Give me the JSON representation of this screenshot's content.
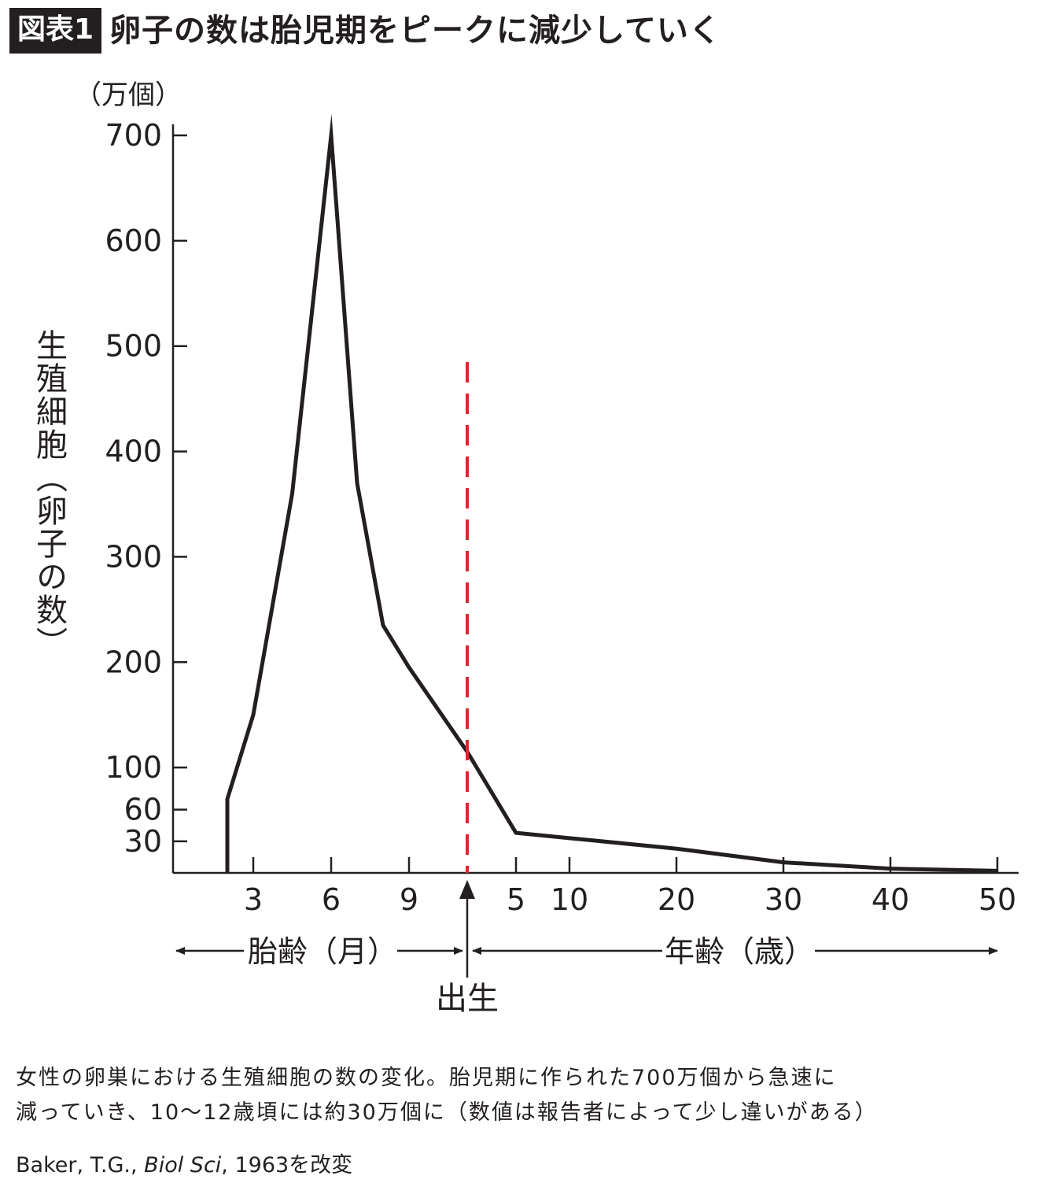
{
  "header": {
    "badge": "図表1",
    "title": "卵子の数は胎児期をピークに減少していく"
  },
  "chart_data": {
    "type": "line",
    "ylabel": "生殖細胞（卵子の数）",
    "yunit": "（万個）",
    "y_ticks": [
      30,
      60,
      100,
      200,
      300,
      400,
      500,
      600,
      700
    ],
    "ylim": [
      0,
      700
    ],
    "x_segments": [
      {
        "label": "胎齢（月）",
        "ticks": [
          "3",
          "6",
          "9"
        ]
      },
      {
        "label": "年齢（歳）",
        "ticks": [
          "5",
          "10",
          "20",
          "30",
          "40",
          "50"
        ]
      }
    ],
    "birth_label": "出生",
    "birth_line_color": "#d7282f",
    "line_color": "#231f20",
    "series": [
      {
        "points": [
          {
            "period": "fetal",
            "x": 2,
            "y": 0
          },
          {
            "period": "fetal",
            "x": 2,
            "y": 70
          },
          {
            "period": "fetal",
            "x": 3,
            "y": 150
          },
          {
            "period": "fetal",
            "x": 4.5,
            "y": 360
          },
          {
            "period": "fetal",
            "x": 6,
            "y": 700
          },
          {
            "period": "fetal",
            "x": 7,
            "y": 370
          },
          {
            "period": "fetal",
            "x": 8,
            "y": 235
          },
          {
            "period": "fetal",
            "x": 9,
            "y": 195
          },
          {
            "period": "postnatal",
            "x": 0,
            "y": 115
          },
          {
            "period": "postnatal",
            "x": 5,
            "y": 38
          },
          {
            "period": "postnatal",
            "x": 10,
            "y": 33
          },
          {
            "period": "postnatal",
            "x": 20,
            "y": 23
          },
          {
            "period": "postnatal",
            "x": 30,
            "y": 10
          },
          {
            "period": "postnatal",
            "x": 40,
            "y": 4
          },
          {
            "period": "postnatal",
            "x": 50,
            "y": 2
          }
        ]
      }
    ]
  },
  "caption": {
    "line1": "女性の卵巣における生殖細胞の数の変化。胎児期に作られた700万個から急速に",
    "line2": "減っていき、10〜12歳頃には約30万個に（数値は報告者によって少し違いがある）"
  },
  "source": {
    "author": "Baker, T.G., ",
    "journal": "Biol Sci",
    "rest": ", 1963を改変"
  }
}
